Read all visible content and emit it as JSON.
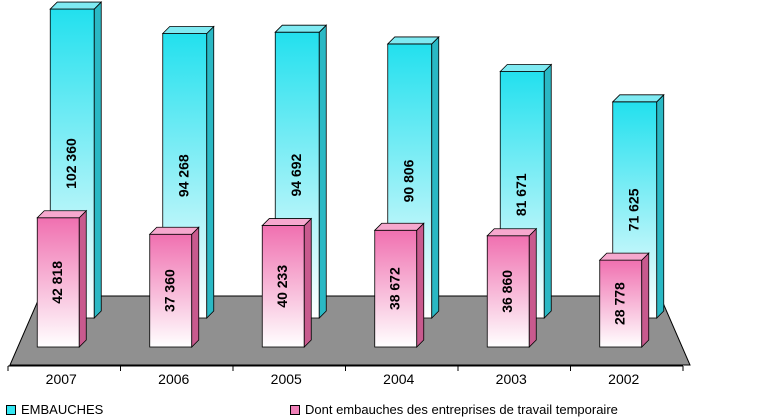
{
  "chart_data": {
    "type": "bar",
    "categories": [
      "2007",
      "2006",
      "2005",
      "2004",
      "2003",
      "2002"
    ],
    "series": [
      {
        "name": "EMBAUCHES",
        "values": [
          102360,
          94268,
          94692,
          90806,
          81671,
          71625
        ],
        "labels": [
          "102 360",
          "94 268",
          "94 692",
          "90 806",
          "81 671",
          "71 625"
        ]
      },
      {
        "name": "Dont embauches des entreprises de travail temporaire",
        "values": [
          42818,
          37360,
          40233,
          38672,
          36860,
          28778
        ],
        "labels": [
          "42 818",
          "37 360",
          "40 233",
          "38 672",
          "36 860",
          "28 778"
        ]
      }
    ],
    "ylim": [
      0,
      110000
    ],
    "grid": false,
    "legend_position": "bottom",
    "colors": {
      "embauches": "#33E6F2",
      "temporaire": "#F080B8",
      "floor": "#909090"
    }
  }
}
